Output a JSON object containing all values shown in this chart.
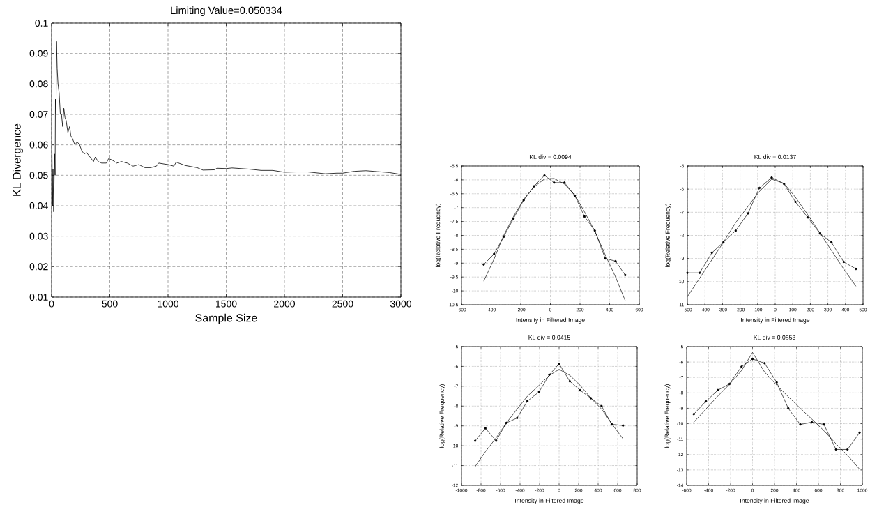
{
  "chart_data": [
    {
      "type": "line",
      "title": "Limiting Value=0.050334",
      "xlabel": "Sample Size",
      "ylabel": "KL Divergence",
      "xlim": [
        0,
        3000
      ],
      "ylim": [
        0.01,
        0.1
      ],
      "xticks": [
        0,
        500,
        1000,
        1500,
        2000,
        2500,
        3000
      ],
      "yticks": [
        0.01,
        0.02,
        0.03,
        0.04,
        0.05,
        0.06,
        0.07,
        0.08,
        0.09,
        0.1
      ],
      "grid": true,
      "series": [
        {
          "color": "#000000",
          "marker": "none",
          "x": [
            1,
            3,
            8,
            12,
            18,
            22,
            26,
            30,
            33,
            38,
            42,
            48,
            55,
            65,
            75,
            85,
            95,
            105,
            115,
            125,
            140,
            155,
            165,
            180,
            200,
            220,
            240,
            260,
            280,
            300,
            330,
            360,
            375,
            400,
            430,
            470,
            490,
            520,
            560,
            600,
            650,
            700,
            750,
            800,
            850,
            900,
            920,
            1000,
            1050,
            1070,
            1150,
            1250,
            1300,
            1400,
            1420,
            1500,
            1550,
            1700,
            1800,
            1900,
            2000,
            2100,
            2200,
            2350,
            2450,
            2500,
            2600,
            2700,
            2800,
            2900,
            3000
          ],
          "values": [
            0.018,
            0.058,
            0.04,
            0.052,
            0.038,
            0.05,
            0.057,
            0.05,
            0.075,
            0.07,
            0.094,
            0.085,
            0.08,
            0.077,
            0.07,
            0.07,
            0.066,
            0.072,
            0.069,
            0.068,
            0.064,
            0.066,
            0.063,
            0.062,
            0.06,
            0.061,
            0.06,
            0.058,
            0.057,
            0.0575,
            0.056,
            0.0545,
            0.056,
            0.0545,
            0.054,
            0.054,
            0.0555,
            0.055,
            0.054,
            0.0545,
            0.054,
            0.053,
            0.0535,
            0.0525,
            0.0525,
            0.053,
            0.054,
            0.0535,
            0.053,
            0.0543,
            0.0532,
            0.0525,
            0.0517,
            0.0518,
            0.0523,
            0.0522,
            0.0524,
            0.052,
            0.0516,
            0.0516,
            0.051,
            0.0511,
            0.0511,
            0.0505,
            0.0507,
            0.0507,
            0.0513,
            0.0515,
            0.0512,
            0.0509,
            0.0503
          ]
        }
      ]
    },
    {
      "type": "line",
      "title": "KL div = 0.0094",
      "xlabel": "Intensity in Filtered Image",
      "ylabel": "log(Relative Frequency)",
      "xlim": [
        -600,
        600
      ],
      "ylim": [
        -10.5,
        -5.5
      ],
      "xticks": [
        -600,
        -400,
        -200,
        0,
        200,
        400,
        600
      ],
      "yticks": [
        -10.5,
        -10,
        -9.5,
        -9,
        -8.5,
        -8,
        -7.5,
        -7,
        -6.5,
        -6,
        -5.5
      ],
      "grid": true,
      "series": [
        {
          "color": "#000000",
          "marker": "circle",
          "x": [
            -450,
            -380,
            -315,
            -250,
            -180,
            -110,
            -40,
            25,
            95,
            165,
            230,
            300,
            370,
            440,
            505
          ],
          "values": [
            -9.05,
            -8.67,
            -8.05,
            -7.4,
            -6.73,
            -6.23,
            -5.84,
            -6.1,
            -6.1,
            -6.57,
            -7.32,
            -7.83,
            -8.83,
            -8.93,
            -9.43
          ]
        },
        {
          "color": "#000000",
          "marker": "none",
          "x": [
            -450,
            -380,
            -315,
            -250,
            -180,
            -110,
            -40,
            25,
            95,
            165,
            230,
            300,
            370,
            440,
            505
          ],
          "values": [
            -9.65,
            -8.85,
            -8.0,
            -7.33,
            -6.7,
            -6.25,
            -5.97,
            -5.95,
            -6.15,
            -6.55,
            -7.15,
            -7.85,
            -8.7,
            -9.5,
            -10.35
          ]
        }
      ]
    },
    {
      "type": "line",
      "title": "KL div = 0.0137",
      "xlabel": "Intensity in Filtered Image",
      "ylabel": "log(Relative Frequency)",
      "xlim": [
        -500,
        500
      ],
      "ylim": [
        -11,
        -5
      ],
      "xticks": [
        -500,
        -400,
        -300,
        -200,
        -100,
        0,
        100,
        200,
        300,
        400,
        500
      ],
      "yticks": [
        -11,
        -10,
        -9,
        -8,
        -7,
        -6,
        -5
      ],
      "grid": true,
      "series": [
        {
          "color": "#000000",
          "marker": "circle",
          "x": [
            -500,
            -430,
            -360,
            -295,
            -225,
            -155,
            -90,
            -20,
            50,
            115,
            185,
            255,
            320,
            390,
            460
          ],
          "values": [
            -9.62,
            -9.62,
            -8.75,
            -8.3,
            -7.8,
            -7.05,
            -5.95,
            -5.5,
            -5.77,
            -6.55,
            -7.22,
            -7.92,
            -8.3,
            -9.15,
            -9.45
          ]
        },
        {
          "color": "#000000",
          "marker": "none",
          "x": [
            -500,
            -430,
            -360,
            -295,
            -225,
            -155,
            -90,
            -20,
            50,
            115,
            185,
            255,
            320,
            390,
            460
          ],
          "values": [
            -10.65,
            -9.85,
            -9.05,
            -8.3,
            -7.45,
            -6.75,
            -6.1,
            -5.57,
            -5.75,
            -6.35,
            -7.1,
            -7.9,
            -8.65,
            -9.45,
            -10.2
          ]
        }
      ]
    },
    {
      "type": "line",
      "title": "KL div = 0.0415",
      "xlabel": "Intensity in Filtered Image",
      "ylabel": "log(Relative Frequency)",
      "xlim": [
        -1000,
        800
      ],
      "ylim": [
        -12,
        -5
      ],
      "xticks": [
        -1000,
        -800,
        -600,
        -400,
        -200,
        0,
        200,
        400,
        600,
        800
      ],
      "yticks": [
        -12,
        -11,
        -10,
        -9,
        -8,
        -7,
        -6,
        -5
      ],
      "grid": true,
      "series": [
        {
          "color": "#000000",
          "marker": "circle",
          "x": [
            -860,
            -755,
            -645,
            -540,
            -430,
            -325,
            -205,
            -100,
            0,
            110,
            215,
            325,
            435,
            540,
            655
          ],
          "values": [
            -9.75,
            -9.12,
            -9.75,
            -8.85,
            -8.6,
            -7.75,
            -7.28,
            -6.42,
            -5.87,
            -6.75,
            -7.2,
            -7.6,
            -8.0,
            -8.92,
            -8.98
          ]
        },
        {
          "color": "#000000",
          "marker": "none",
          "x": [
            -860,
            -755,
            -645,
            -540,
            -430,
            -325,
            -205,
            -100,
            0,
            110,
            215,
            325,
            435,
            540,
            655
          ],
          "values": [
            -11.05,
            -10.3,
            -9.6,
            -8.85,
            -8.15,
            -7.5,
            -6.95,
            -6.45,
            -6.15,
            -6.45,
            -6.95,
            -7.6,
            -8.15,
            -8.9,
            -9.65
          ]
        }
      ]
    },
    {
      "type": "line",
      "title": "KL div = 0.0853",
      "xlabel": "Intensity in Filtered Image",
      "ylabel": "log(Relative Frequency)",
      "xlim": [
        -600,
        1000
      ],
      "ylim": [
        -14,
        -5
      ],
      "xticks": [
        -600,
        -400,
        -200,
        0,
        200,
        400,
        600,
        800,
        1000
      ],
      "yticks": [
        -14,
        -13,
        -12,
        -11,
        -10,
        -9,
        -8,
        -7,
        -6,
        -5
      ],
      "grid": true,
      "series": [
        {
          "color": "#000000",
          "marker": "circle",
          "x": [
            -535,
            -425,
            -315,
            -210,
            -100,
            0,
            110,
            220,
            325,
            435,
            540,
            650,
            760,
            865,
            975
          ],
          "values": [
            -9.38,
            -8.55,
            -7.82,
            -7.42,
            -6.3,
            -5.8,
            -6.08,
            -7.32,
            -9.0,
            -10.05,
            -9.9,
            -10.05,
            -11.67,
            -11.67,
            -10.58
          ]
        },
        {
          "color": "#000000",
          "marker": "none",
          "x": [
            -535,
            -425,
            -315,
            -210,
            -100,
            0,
            110,
            220,
            325,
            435,
            540,
            650,
            760,
            865,
            975
          ],
          "values": [
            -9.9,
            -9.05,
            -8.2,
            -7.45,
            -6.55,
            -5.38,
            -6.65,
            -7.5,
            -8.25,
            -9.0,
            -9.7,
            -10.45,
            -11.3,
            -12.05,
            -12.95
          ]
        }
      ]
    }
  ]
}
